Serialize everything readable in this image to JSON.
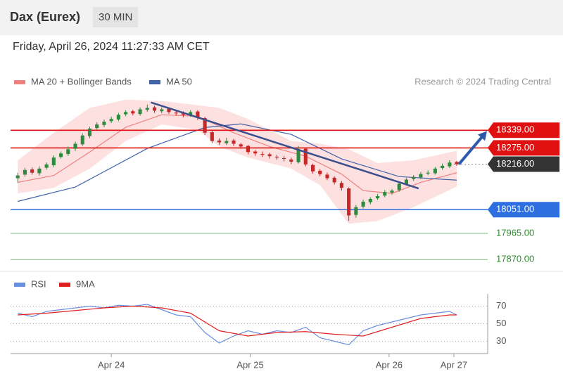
{
  "header": {
    "title": "Dax (Eurex)",
    "interval": "30 MIN",
    "timestamp": "Friday, April 26, 2024 11:27:33 AM CET",
    "credit": "Research © 2024 Trading Central"
  },
  "chart_data": [
    {
      "type": "candlestick",
      "up_color": "#2e8b3e",
      "down_color": "#c62828",
      "xlim": [
        -1,
        65.3
      ],
      "ylim": [
        17840,
        18480
      ],
      "open": [
        18165,
        18178,
        18197,
        18183,
        18203,
        18212,
        18242,
        18253,
        18272,
        18288,
        18318,
        18347,
        18358,
        18372,
        18378,
        18397,
        18408,
        18398,
        18413,
        18422,
        18408,
        18417,
        18403,
        18402,
        18393,
        18407,
        18383,
        18332,
        18302,
        18292,
        18302,
        18288,
        18282,
        18262,
        18253,
        18252,
        18243,
        18238,
        18233,
        18223,
        18272,
        18213,
        18192,
        18178,
        18167,
        18148,
        18128,
        18032,
        18062,
        18078,
        18092,
        18102,
        18113,
        18122,
        18143,
        18162,
        18168,
        18182,
        18183,
        18202,
        18208,
        18224
      ],
      "high": [
        18185,
        18203,
        18205,
        18208,
        18222,
        18248,
        18262,
        18280,
        18298,
        18328,
        18352,
        18368,
        18378,
        18388,
        18402,
        18412,
        18414,
        18422,
        18432,
        18428,
        18422,
        18422,
        18410,
        18408,
        18412,
        18412,
        18388,
        18338,
        18310,
        18312,
        18308,
        18294,
        18286,
        18268,
        18262,
        18258,
        18250,
        18246,
        18240,
        18282,
        18276,
        18218,
        18198,
        18186,
        18172,
        18155,
        18132,
        18068,
        18088,
        18096,
        18108,
        18122,
        18126,
        18152,
        18166,
        18176,
        18188,
        18194,
        18206,
        18218,
        18230,
        18228
      ],
      "low": [
        18150,
        18170,
        18178,
        18175,
        18196,
        18205,
        18236,
        18246,
        18264,
        18282,
        18310,
        18340,
        18350,
        18365,
        18372,
        18390,
        18393,
        18392,
        18406,
        18402,
        18400,
        18398,
        18392,
        18386,
        18388,
        18376,
        18322,
        18292,
        18286,
        18286,
        18282,
        18272,
        18252,
        18246,
        18242,
        18236,
        18232,
        18226,
        18216,
        18218,
        18208,
        18182,
        18172,
        18158,
        18142,
        18120,
        18010,
        18022,
        18055,
        18070,
        18086,
        18096,
        18106,
        18116,
        18138,
        18155,
        18162,
        18176,
        18178,
        18196,
        18202,
        18210
      ],
      "close": [
        18175,
        18195,
        18185,
        18200,
        18215,
        18240,
        18255,
        18270,
        18290,
        18320,
        18345,
        18360,
        18370,
        18380,
        18395,
        18405,
        18400,
        18415,
        18420,
        18410,
        18415,
        18405,
        18400,
        18395,
        18405,
        18385,
        18330,
        18300,
        18295,
        18300,
        18290,
        18280,
        18260,
        18255,
        18250,
        18245,
        18240,
        18235,
        18225,
        18270,
        18215,
        18190,
        18180,
        18165,
        18150,
        18130,
        18030,
        18060,
        18080,
        18090,
        18100,
        18115,
        18120,
        18145,
        18160,
        18170,
        18180,
        18185,
        18200,
        18210,
        18222,
        18216
      ],
      "overlays": [
        {
          "name": "MA 20 + Bollinger Bands",
          "color": "#f08080",
          "band_color": "#fde0e0",
          "x": [
            0,
            5,
            10,
            15,
            20,
            25,
            30,
            35,
            40,
            45,
            48,
            52,
            56,
            61
          ],
          "values": [
            18150,
            18175,
            18260,
            18350,
            18395,
            18390,
            18330,
            18280,
            18245,
            18180,
            18120,
            18110,
            18150,
            18185
          ],
          "band_x": [
            0,
            5,
            10,
            15,
            20,
            25,
            28,
            32,
            38,
            42,
            46,
            50,
            55,
            61
          ],
          "upper": [
            18230,
            18330,
            18420,
            18450,
            18445,
            18430,
            18420,
            18380,
            18300,
            18290,
            18270,
            18220,
            18230,
            18265
          ],
          "lower": [
            18110,
            18130,
            18200,
            18300,
            18360,
            18340,
            18280,
            18240,
            18200,
            18140,
            18000,
            18010,
            18060,
            18135
          ]
        },
        {
          "name": "MA 50",
          "color": "#3f62a8",
          "x": [
            0,
            8,
            18,
            26,
            31,
            38,
            45,
            53,
            61
          ],
          "values": [
            18081,
            18133,
            18273,
            18349,
            18362,
            18324,
            18235,
            18171,
            18158
          ]
        }
      ],
      "trendline": {
        "color": "#3b4f8c",
        "x": [
          18.5,
          55.7
        ],
        "values": [
          18440,
          18128
        ]
      },
      "arrow": {
        "color": "#2d5aa8",
        "x": [
          61.3,
          65.2
        ],
        "values": [
          18216,
          18336
        ]
      },
      "levels": [
        {
          "value": 18339,
          "label": "18339.00",
          "color": "#e01010",
          "style": "box"
        },
        {
          "value": 18275,
          "label": "18275.00",
          "color": "#e01010",
          "style": "box"
        },
        {
          "value": 18216,
          "label": "18216.00",
          "color": "#333333",
          "style": "current"
        },
        {
          "value": 18051,
          "label": "18051.00",
          "color": "#2d6fe0",
          "style": "box"
        },
        {
          "value": 17965,
          "label": "17965.00",
          "color": "#2e8b2e",
          "style": "text"
        },
        {
          "value": 17870,
          "label": "17870.00",
          "color": "#2e8b2e",
          "style": "text"
        }
      ]
    },
    {
      "type": "line",
      "xlim": [
        -1,
        65.3
      ],
      "ylim": [
        16,
        84
      ],
      "yticks": [
        30,
        50,
        70
      ],
      "xticks": [
        {
          "value": 13,
          "label": "Apr 24"
        },
        {
          "value": 32.3,
          "label": "Apr 25"
        },
        {
          "value": 51.6,
          "label": "Apr 26"
        },
        {
          "value": 60.6,
          "label": "Apr 27"
        }
      ],
      "series": [
        {
          "name": "RSI",
          "color": "#6a8fe0",
          "x": [
            0,
            2,
            4,
            6,
            8,
            10,
            12,
            14,
            16,
            18,
            20,
            22,
            24,
            26,
            28,
            30,
            32,
            34,
            36,
            38,
            40,
            42,
            44,
            46,
            48,
            50,
            52,
            54,
            56,
            58,
            60,
            61
          ],
          "values": [
            62,
            58,
            64,
            66,
            68,
            70,
            68,
            71,
            70,
            72,
            66,
            60,
            58,
            40,
            28,
            36,
            42,
            38,
            42,
            40,
            46,
            34,
            30,
            26,
            42,
            48,
            52,
            56,
            60,
            62,
            64,
            60
          ]
        },
        {
          "name": "9MA",
          "color": "#e02020",
          "x": [
            0,
            4,
            8,
            12,
            16,
            20,
            24,
            28,
            32,
            36,
            40,
            44,
            48,
            52,
            56,
            60,
            61
          ],
          "values": [
            60,
            62,
            65,
            68,
            70,
            68,
            62,
            42,
            36,
            40,
            41,
            38,
            36,
            46,
            56,
            60,
            60
          ]
        }
      ]
    }
  ]
}
